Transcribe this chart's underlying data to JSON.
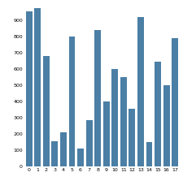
{
  "categories": [
    0,
    1,
    2,
    3,
    4,
    5,
    6,
    7,
    8,
    9,
    10,
    11,
    12,
    13,
    14,
    15,
    16,
    17
  ],
  "values": [
    950,
    970,
    680,
    155,
    210,
    800,
    110,
    285,
    840,
    400,
    600,
    550,
    355,
    920,
    150,
    645,
    500,
    790
  ],
  "bar_color": "#4b7fa5",
  "ylim": [
    0,
    1000
  ],
  "yticks": [
    0,
    100,
    200,
    300,
    400,
    500,
    600,
    700,
    800,
    900
  ],
  "background_color": "#ffffff",
  "tick_fontsize": 4.5,
  "bar_width": 0.75
}
